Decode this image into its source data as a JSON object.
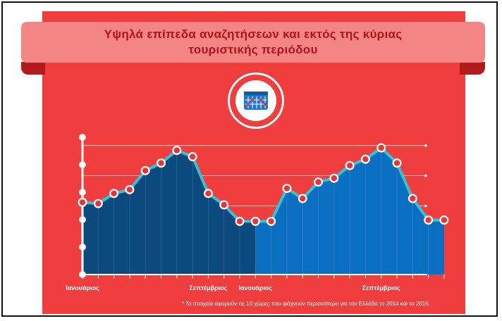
{
  "title": "Υψηλά επίπεδα αναζητήσεων και εκτός της κύριας τουριστικής περιόδου",
  "footnote": "* Τα στοιχεία αφορούν τις 10 χώρες που ψάχνουν περισσότερο για την Ελλάδα το 2014 και το 2015.",
  "icon": "calendar-chart-icon",
  "colors": {
    "panel": "#f03e3e",
    "banner": "#f38585",
    "ribbon_dark": "#b31b1b",
    "title_text": "#b31217",
    "fill_2014": "#0c4a7e",
    "fill_2015": "#0b6fc1",
    "line": "#35c3d3",
    "marker_fill": "#e6353a",
    "axis_text": "#ffffff"
  },
  "chart_data": {
    "type": "area",
    "x_labels": [
      "Ιανουάριος",
      "Σεπτέμβριος",
      "Ιανουάριος",
      "Σεπτέμβριος"
    ],
    "x_label_positions": [
      0,
      8,
      11,
      19
    ],
    "ylim": [
      0,
      100
    ],
    "grid": true,
    "series": [
      {
        "values": [
          57,
          56,
          64,
          67,
          82,
          88,
          98,
          93,
          64,
          55,
          42,
          42
        ]
      },
      {
        "values": [
          42,
          68,
          60,
          73,
          76,
          86,
          91,
          100,
          88,
          60,
          43,
          43
        ]
      }
    ]
  }
}
